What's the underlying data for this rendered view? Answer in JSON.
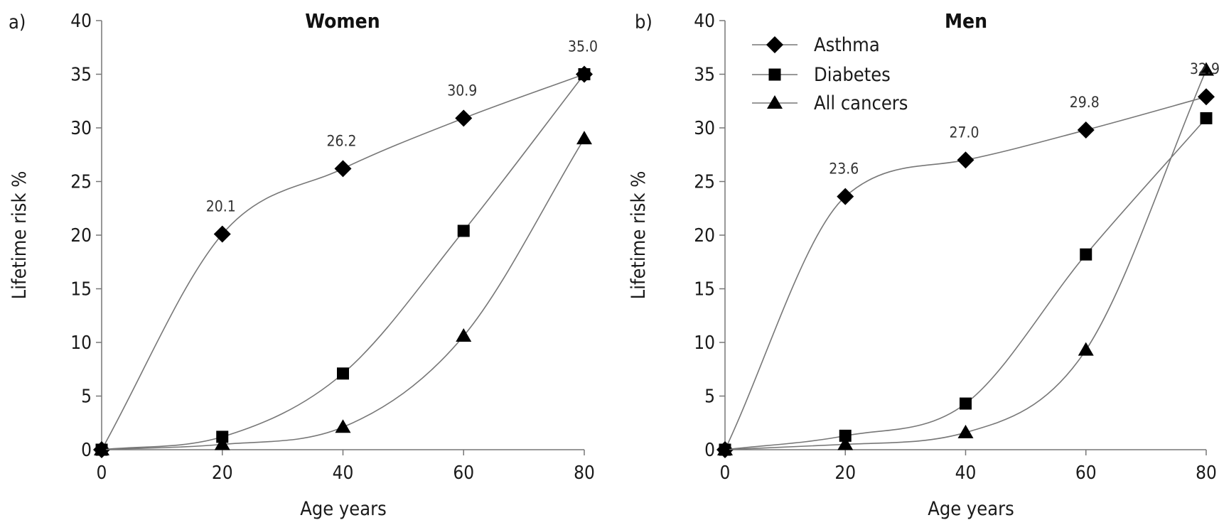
{
  "chart_data": [
    {
      "type": "line",
      "panel_label": "a)",
      "title": "Women",
      "xlabel": "Age years",
      "ylabel": "Lifetime risk %",
      "x": [
        0,
        20,
        40,
        60,
        80
      ],
      "xlim": [
        0,
        80
      ],
      "ylim": [
        0,
        40
      ],
      "xticks": [
        0,
        20,
        40,
        60,
        80
      ],
      "yticks": [
        0,
        5,
        10,
        15,
        20,
        25,
        30,
        35,
        40
      ],
      "grid": false,
      "series": [
        {
          "name": "Asthma",
          "marker": "diamond",
          "values": [
            0,
            20.1,
            26.2,
            30.9,
            35.0
          ]
        },
        {
          "name": "Diabetes",
          "marker": "square",
          "values": [
            0,
            1.2,
            7.1,
            20.4,
            35.0
          ]
        },
        {
          "name": "All cancers",
          "marker": "triangle",
          "values": [
            0,
            0.5,
            2.1,
            10.6,
            29.0
          ]
        }
      ],
      "data_labels": [
        {
          "x": 20,
          "y": 20.1,
          "text": "20.1"
        },
        {
          "x": 40,
          "y": 26.2,
          "text": "26.2"
        },
        {
          "x": 60,
          "y": 30.9,
          "text": "30.9"
        },
        {
          "x": 80,
          "y": 35.0,
          "text": "35.0"
        }
      ]
    },
    {
      "type": "line",
      "panel_label": "b)",
      "title": "Men",
      "xlabel": "Age years",
      "ylabel": "Lifetime risk %",
      "x": [
        0,
        20,
        40,
        60,
        80
      ],
      "xlim": [
        0,
        80
      ],
      "ylim": [
        0,
        40
      ],
      "xticks": [
        0,
        20,
        40,
        60,
        80
      ],
      "yticks": [
        0,
        5,
        10,
        15,
        20,
        25,
        30,
        35,
        40
      ],
      "grid": false,
      "legend": {
        "position": "top-left",
        "entries": [
          "Asthma",
          "Diabetes",
          "All cancers"
        ]
      },
      "series": [
        {
          "name": "Asthma",
          "marker": "diamond",
          "values": [
            0,
            23.6,
            27.0,
            29.8,
            32.9
          ]
        },
        {
          "name": "Diabetes",
          "marker": "square",
          "values": [
            0,
            1.3,
            4.3,
            18.2,
            30.9
          ]
        },
        {
          "name": "All cancers",
          "marker": "triangle",
          "values": [
            0,
            0.5,
            1.6,
            9.3,
            35.4
          ]
        }
      ],
      "data_labels": [
        {
          "x": 20,
          "y": 23.6,
          "text": "23.6"
        },
        {
          "x": 40,
          "y": 27.0,
          "text": "27.0"
        },
        {
          "x": 60,
          "y": 29.8,
          "text": "29.8"
        },
        {
          "x": 80,
          "y": 32.9,
          "text": "32.9"
        }
      ]
    }
  ]
}
